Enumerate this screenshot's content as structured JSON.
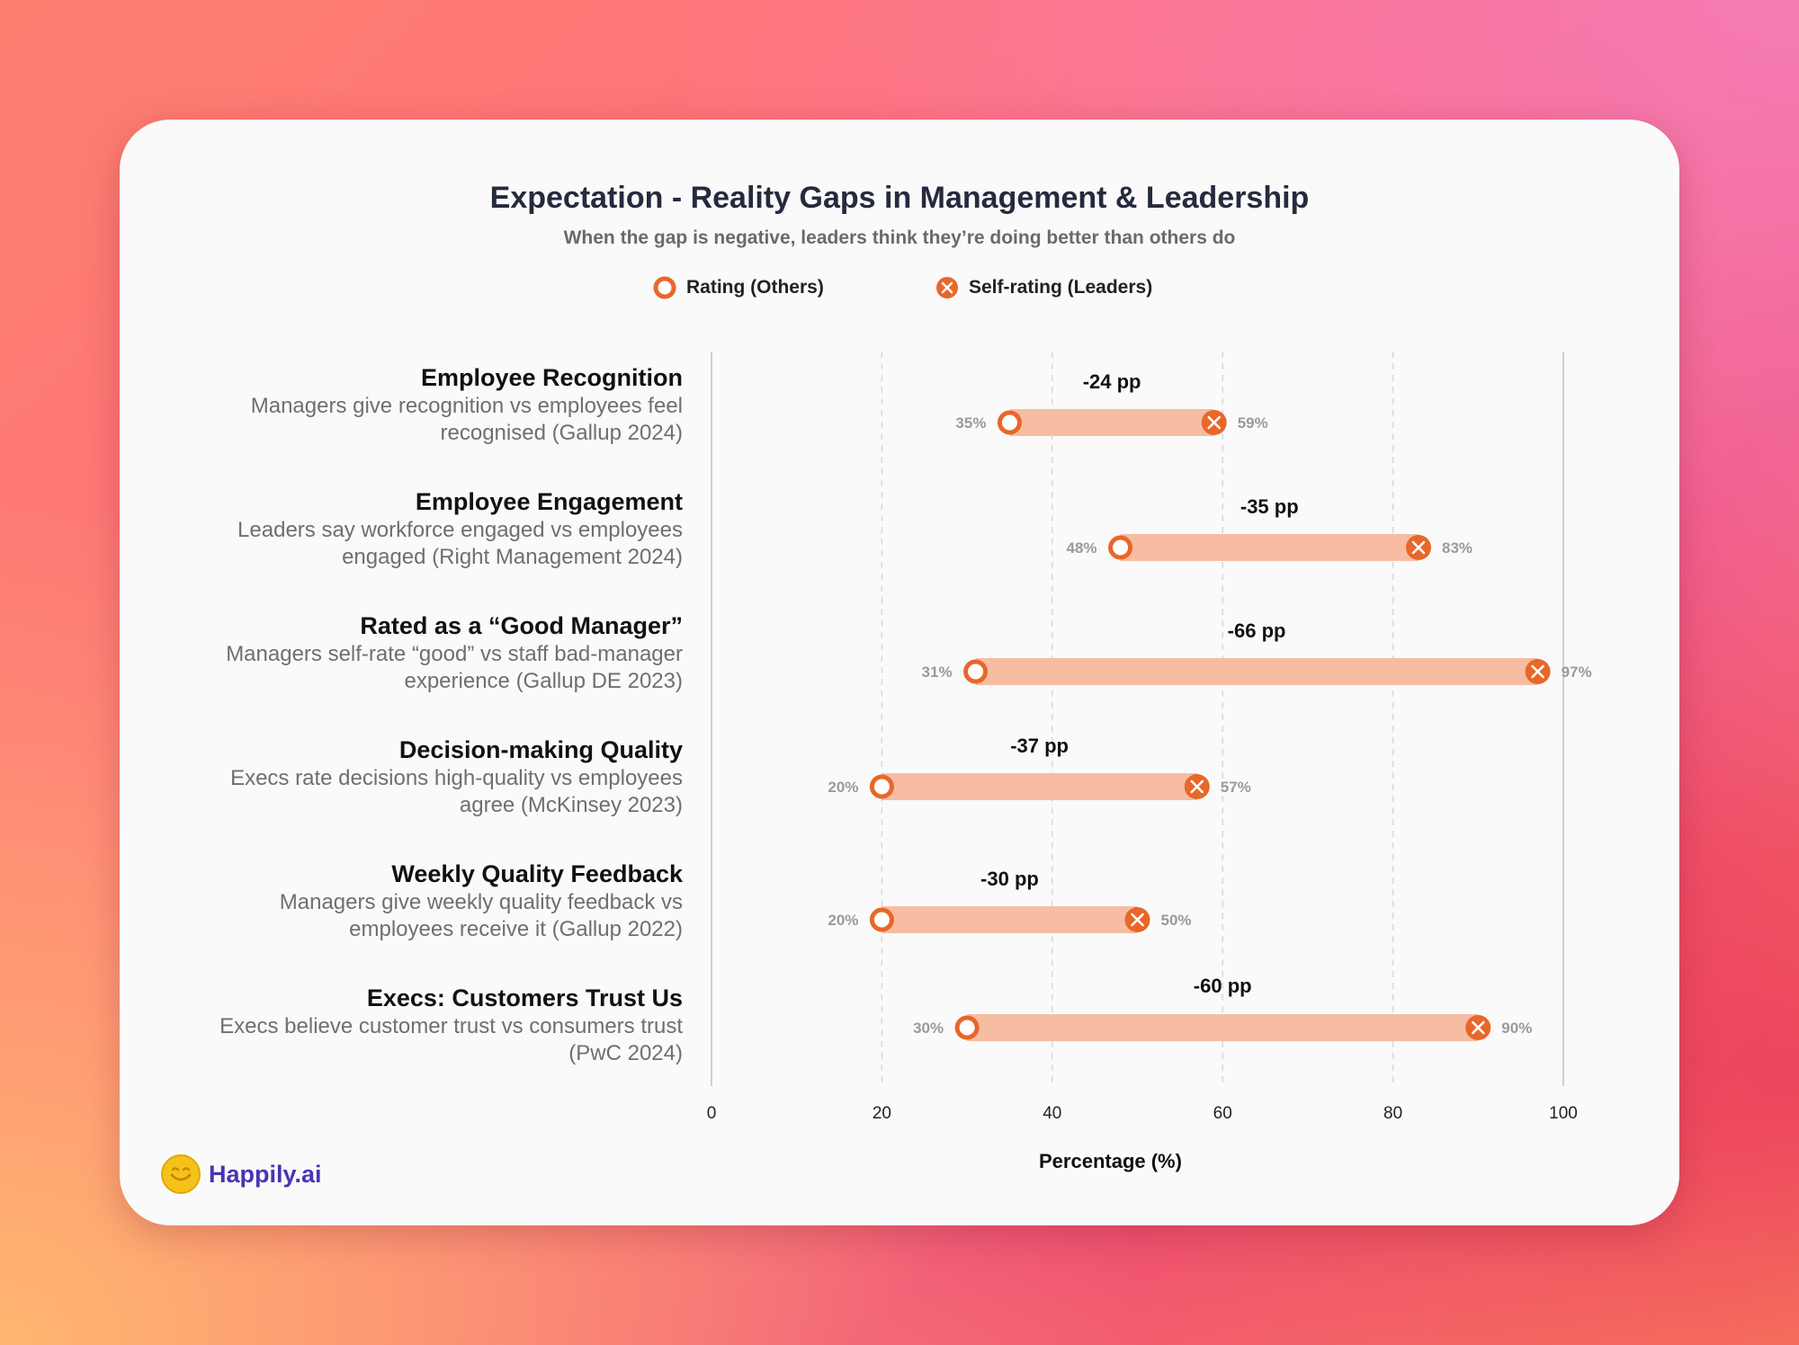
{
  "title": "Expectation - Reality Gaps in Management & Leadership",
  "subtitle": "When the gap is negative, leaders think they’re doing better than others do",
  "legend": {
    "others": "Rating (Others)",
    "self": "Self-rating (Leaders)"
  },
  "brand": {
    "name": "Happily.ai"
  },
  "colors": {
    "accent": "#e8672a",
    "bar": "#f6bda3",
    "title": "#262a3e"
  },
  "chart_data": {
    "type": "dumbbell",
    "xlabel": "Percentage (%)",
    "xlim": [
      0,
      100
    ],
    "xticks": [
      0,
      20,
      40,
      60,
      80,
      100
    ],
    "grid": true,
    "legend_placement": "top-center",
    "series": [
      {
        "name": "Rating (Others)"
      },
      {
        "name": "Self-rating (Leaders)"
      }
    ],
    "rows": [
      {
        "title": "Employee Recognition",
        "desc": [
          "Managers give recognition vs employees feel",
          "recognised (Gallup 2024)"
        ],
        "others": 35,
        "self": 59,
        "others_label": "35%",
        "self_label": "59%",
        "gap": "-24 pp"
      },
      {
        "title": "Employee Engagement",
        "desc": [
          "Leaders say workforce engaged vs employees",
          "engaged (Right Management 2024)"
        ],
        "others": 48,
        "self": 83,
        "others_label": "48%",
        "self_label": "83%",
        "gap": "-35 pp"
      },
      {
        "title": "Rated as a “Good Manager”",
        "desc": [
          "Managers self-rate “good” vs staff bad-manager",
          "experience (Gallup DE 2023)"
        ],
        "others": 31,
        "self": 97,
        "others_label": "31%",
        "self_label": "97%",
        "gap": "-66 pp"
      },
      {
        "title": "Decision-making Quality",
        "desc": [
          "Execs rate decisions high-quality vs employees",
          "agree (McKinsey 2023)"
        ],
        "others": 20,
        "self": 57,
        "others_label": "20%",
        "self_label": "57%",
        "gap": "-37 pp"
      },
      {
        "title": "Weekly Quality Feedback",
        "desc": [
          "Managers give weekly quality feedback vs",
          "employees receive it (Gallup 2022)"
        ],
        "others": 20,
        "self": 50,
        "others_label": "20%",
        "self_label": "50%",
        "gap": "-30 pp"
      },
      {
        "title": "Execs: Customers Trust Us",
        "desc": [
          "Execs believe customer trust vs consumers trust",
          "(PwC 2024)"
        ],
        "others": 30,
        "self": 90,
        "others_label": "30%",
        "self_label": "90%",
        "gap": "-60 pp"
      }
    ]
  }
}
